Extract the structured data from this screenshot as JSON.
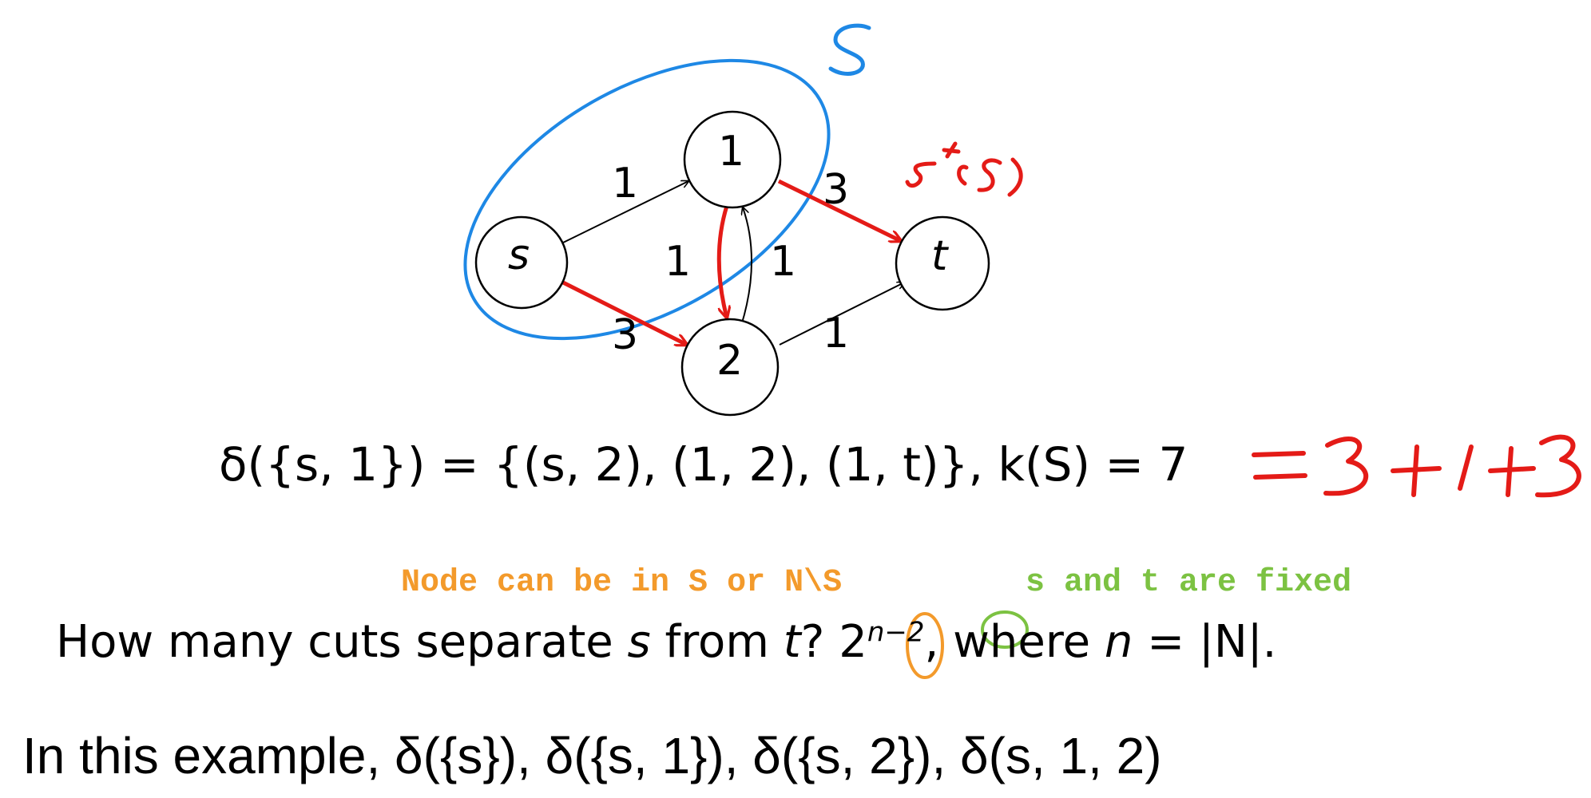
{
  "graph": {
    "nodes": [
      {
        "id": "s",
        "label": "s"
      },
      {
        "id": "1",
        "label": "1"
      },
      {
        "id": "2",
        "label": "2"
      },
      {
        "id": "t",
        "label": "t"
      }
    ],
    "edges": [
      {
        "from": "s",
        "to": "1",
        "capacity": "1",
        "highlighted": false
      },
      {
        "from": "s",
        "to": "2",
        "capacity": "3",
        "highlighted": true
      },
      {
        "from": "1",
        "to": "2",
        "capacity": "1",
        "highlighted": true
      },
      {
        "from": "2",
        "to": "1",
        "capacity": "1",
        "highlighted": false
      },
      {
        "from": "1",
        "to": "t",
        "capacity": "3",
        "highlighted": true
      },
      {
        "from": "2",
        "to": "t",
        "capacity": "1",
        "highlighted": false
      }
    ],
    "set_label": "S",
    "cut_label": "δ⁺(S)"
  },
  "equation": {
    "text": "δ({s, 1}) = {(s, 2), (1, 2), (1, t)}, k(S) = 7",
    "handwritten_sum": "= 3 + 1 + 3"
  },
  "annotations": {
    "orange_note": "Node can be in S or N\\S",
    "green_note": "s and t are fixed"
  },
  "question": {
    "prefix": "How many cuts separate",
    "s": "s",
    "from": "from",
    "t": "t",
    "qmark": "?",
    "base": "2",
    "exponent": "n−2",
    "where": ", where",
    "n": "n",
    "eq": "= |N|."
  },
  "example": {
    "text": "In this example, δ({s}),  δ({s, 1}),  δ({s, 2}),  δ(s, 1, 2)"
  },
  "colors": {
    "black": "#000000",
    "red": "#e41b17",
    "blue": "#1e88e5",
    "orange": "#f39a2b",
    "green": "#7cc242"
  }
}
